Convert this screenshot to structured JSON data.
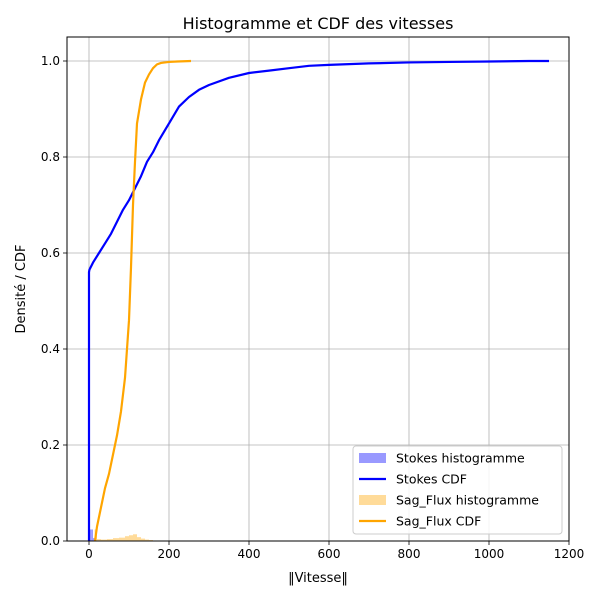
{
  "chart_data": {
    "type": "line",
    "title": "Histogramme et CDF des vitesses",
    "xlabel": "‖Vitesse‖",
    "ylabel": "Densité / CDF",
    "xlim": [
      -55,
      1200
    ],
    "ylim": [
      0,
      1.05
    ],
    "xticks": [
      0,
      200,
      400,
      600,
      800,
      1000,
      1200
    ],
    "yticks": [
      0.0,
      0.2,
      0.4,
      0.6,
      0.8,
      1.0
    ],
    "xtick_labels": [
      "0",
      "200",
      "400",
      "600",
      "800",
      "1000",
      "1200"
    ],
    "ytick_labels": [
      "0.0",
      "0.2",
      "0.4",
      "0.6",
      "0.8",
      "1.0"
    ],
    "grid": true,
    "legend_position": "lower-right",
    "legend": [
      {
        "label": "Stokes histogramme",
        "kind": "patch",
        "color": "#9999ff"
      },
      {
        "label": "Stokes CDF",
        "kind": "line",
        "color": "#0000ff"
      },
      {
        "label": "Sag_Flux histogramme",
        "kind": "patch",
        "color": "#ffdb99"
      },
      {
        "label": "Sag_Flux CDF",
        "kind": "line",
        "color": "#ffa500"
      }
    ],
    "series": [
      {
        "name": "Stokes histogramme",
        "type": "bar",
        "color": "#9999ff",
        "bins": [
          [
            -2,
            2,
            0.024
          ],
          [
            2,
            6,
            0.024
          ],
          [
            6,
            10,
            0.024
          ],
          [
            10,
            14,
            0.006
          ]
        ]
      },
      {
        "name": "Sag_Flux histogramme",
        "type": "bar",
        "color": "#ffdb99",
        "bins": [
          [
            14,
            20,
            0.024
          ],
          [
            20,
            30,
            0.004
          ],
          [
            30,
            45,
            0.003
          ],
          [
            45,
            60,
            0.004
          ],
          [
            60,
            75,
            0.006
          ],
          [
            75,
            90,
            0.007
          ],
          [
            90,
            100,
            0.01
          ],
          [
            100,
            110,
            0.012
          ],
          [
            110,
            120,
            0.014
          ],
          [
            120,
            130,
            0.008
          ],
          [
            130,
            140,
            0.005
          ],
          [
            140,
            150,
            0.003
          ],
          [
            150,
            160,
            0.002
          ]
        ]
      },
      {
        "name": "Stokes CDF",
        "type": "line",
        "color": "#0000ff",
        "x": [
          0,
          0,
          1,
          10,
          25,
          40,
          55,
          70,
          85,
          100,
          115,
          130,
          145,
          160,
          175,
          200,
          225,
          250,
          275,
          300,
          350,
          400,
          450,
          500,
          550,
          600,
          700,
          800,
          900,
          1000,
          1100,
          1150
        ],
        "y": [
          0.0,
          0.56,
          0.565,
          0.58,
          0.6,
          0.62,
          0.64,
          0.665,
          0.69,
          0.71,
          0.735,
          0.76,
          0.79,
          0.81,
          0.835,
          0.87,
          0.905,
          0.925,
          0.94,
          0.95,
          0.965,
          0.975,
          0.98,
          0.985,
          0.99,
          0.992,
          0.995,
          0.997,
          0.998,
          0.999,
          1.0,
          1.0
        ]
      },
      {
        "name": "Sag_Flux CDF",
        "type": "line",
        "color": "#ffa500",
        "x": [
          15,
          20,
          30,
          40,
          50,
          60,
          70,
          80,
          90,
          100,
          105,
          110,
          115,
          120,
          130,
          140,
          150,
          160,
          170,
          180,
          200,
          220,
          255
        ],
        "y": [
          0.0,
          0.03,
          0.07,
          0.11,
          0.14,
          0.18,
          0.22,
          0.27,
          0.34,
          0.46,
          0.57,
          0.7,
          0.79,
          0.87,
          0.92,
          0.955,
          0.972,
          0.985,
          0.993,
          0.996,
          0.998,
          0.999,
          1.0
        ]
      }
    ]
  }
}
